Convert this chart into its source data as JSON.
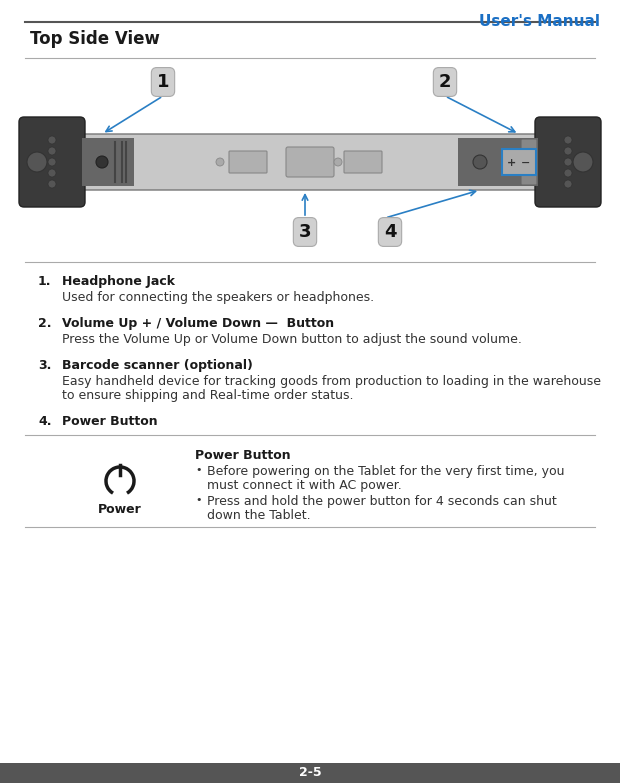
{
  "title_right": "User's Manual",
  "title_right_color": "#1a6fc4",
  "section_title": "Top Side View",
  "bg_color": "#ffffff",
  "header_line_color": "#555555",
  "divider_color": "#aaaaaa",
  "items": [
    {
      "num": "1.",
      "bold": "Headphone Jack",
      "text": "Used for connecting the speakers or headphones."
    },
    {
      "num": "2.",
      "bold": "Volume Up + / Volume Down —  Button",
      "text": "Press the Volume Up or Volume Down button to adjust the sound volume."
    },
    {
      "num": "3.",
      "bold": "Barcode scanner (optional)",
      "text": "Easy handheld device for tracking goods from production to loading in the warehouse\nto ensure shipping and Real-time order status."
    },
    {
      "num": "4.",
      "bold": "Power Button",
      "text": ""
    }
  ],
  "power_title": "Power Button",
  "power_bullet1": "Before powering on the Tablet for the very first time, you\nmust connect it with AC power.",
  "power_bullet2": "Press and hold the power button for 4 seconds can shut\ndown the Tablet.",
  "power_label": "Power",
  "footer_text": "2-5",
  "footer_bg": "#555555",
  "footer_text_color": "#ffffff",
  "label_bg": "#d0d0d0",
  "arrow_color": "#2a7fc4",
  "device_body_color": "#c0c0c0",
  "device_dark_color": "#3a3a3a",
  "device_mid_color": "#888888"
}
